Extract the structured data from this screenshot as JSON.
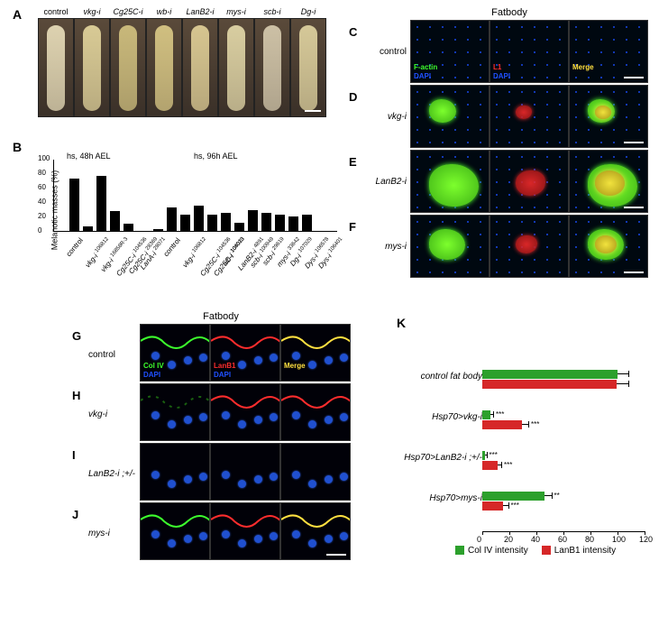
{
  "panelA": {
    "label": "A",
    "conditions": [
      "control",
      "vkg-i",
      "Cg25C-i",
      "wb-i",
      "LanB2-i",
      "mys-i",
      "scb-i",
      "Dg-i"
    ],
    "larva_colors": [
      "#ddd2b0",
      "#d8ca95",
      "#c8b87a",
      "#d0bf80",
      "#d6c590",
      "#d8cda0",
      "#ccc0a5",
      "#d5c898"
    ]
  },
  "panelB": {
    "label": "B",
    "ylabel": "Melanotic masses (%)",
    "ymax": 100,
    "ytick_step": 20,
    "section1": {
      "header": "hs, 48h AEL",
      "categories": [
        "control",
        "vkg-i 106812",
        "vkg-i 16858R-3",
        "Cg25C-i 104536",
        "Cg25C-i 28369",
        "LanA-i 28071"
      ],
      "values": [
        0,
        73,
        6,
        76,
        28,
        10
      ]
    },
    "section2": {
      "header": "hs, 96h AEL",
      "categories": [
        "control",
        "vkg-i 106812",
        "Cg25C-i 104536",
        "Cg25C-i 108020",
        "wb-i 104013",
        "LanB2-i 4891",
        "scb-i 100949",
        "scb-i 29619",
        "mys-i 33642",
        "Dg-i 107029",
        "Dys-i 106578",
        "Dys-i 106401"
      ],
      "values": [
        3,
        32,
        22,
        35,
        23,
        25,
        11,
        29,
        25,
        23,
        20,
        23
      ]
    }
  },
  "fatbodyRight": {
    "title": "Fatbody",
    "rows": [
      {
        "letter": "C",
        "label": "control",
        "has_blob": false
      },
      {
        "letter": "D",
        "label": "vkg-i",
        "has_blob": true,
        "blob_size": 30
      },
      {
        "letter": "E",
        "label": "LanB2-i",
        "has_blob": true,
        "blob_size": 55
      },
      {
        "letter": "F",
        "label": "mys-i",
        "has_blob": true,
        "blob_size": 40
      }
    ],
    "channels": [
      {
        "name1": "F-actin",
        "color1": "#3dff2d",
        "name2": "DAPI",
        "color2": "#2050ff"
      },
      {
        "name1": "L1",
        "color1": "#ff2d2d",
        "name2": "DAPI",
        "color2": "#2050ff"
      },
      {
        "name1": "Merge",
        "color1": "#ffe040"
      }
    ]
  },
  "fatbodyBottom": {
    "title": "Fatbody",
    "rows": [
      {
        "letter": "G",
        "label": "control",
        "green": true,
        "red": true
      },
      {
        "letter": "H",
        "label": "vkg-i",
        "green": false,
        "red": true
      },
      {
        "letter": "I",
        "label": "LanB2-i ;+/-",
        "green": false,
        "red": false
      },
      {
        "letter": "J",
        "label": "mys-i",
        "green": true,
        "red": true
      }
    ],
    "channels": [
      {
        "name1": "Col IV",
        "color1": "#3dff2d",
        "name2": "DAPI",
        "color2": "#2050ff"
      },
      {
        "name1": "LanB1",
        "color1": "#ff2d2d",
        "name2": "DAPI",
        "color2": "#2050ff"
      },
      {
        "name1": "Merge",
        "color1": "#ffe040"
      }
    ]
  },
  "panelK": {
    "label": "K",
    "categories": [
      "control fat body",
      "Hsp70>vkg-i",
      "Hsp70>LanB2-i ;+/-",
      "Hsp70>mys-i"
    ],
    "series": [
      {
        "name": "Col IV intensity",
        "color": "#2ca02c",
        "values": [
          100,
          6,
          2,
          46
        ],
        "errors": [
          8,
          2,
          1,
          5
        ],
        "stars": [
          "",
          "***",
          "***",
          "**"
        ]
      },
      {
        "name": "LanB1 intensity",
        "color": "#d62728",
        "values": [
          99,
          29,
          11,
          15
        ],
        "errors": [
          9,
          5,
          3,
          4
        ],
        "stars": [
          "",
          "***",
          "***",
          "***"
        ]
      }
    ],
    "xmax": 120,
    "xtick_step": 20
  }
}
